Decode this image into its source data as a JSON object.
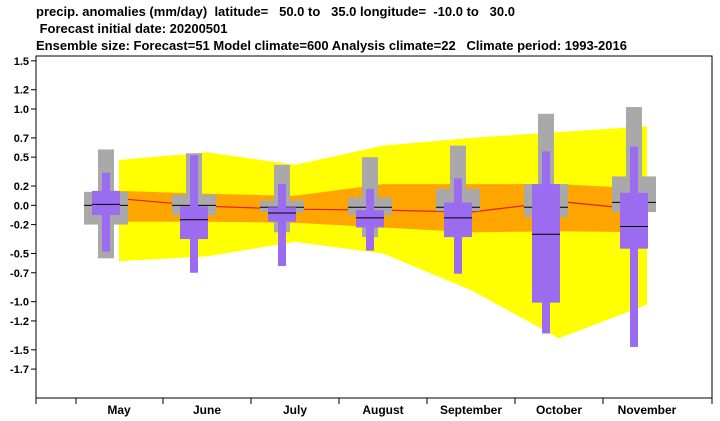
{
  "header": {
    "line1": "precip. anomalies (mm/day)  latitude=   50.0 to   35.0 longitude=  -10.0 to   30.0",
    "line2": " Forecast initial date: 20200501",
    "line3": "Ensemble size: Forecast=51 Model climate=600 Analysis climate=22   Climate period: 1993-2016"
  },
  "colors": {
    "outer_band": "#ffff00",
    "inner_band": "#ffa500",
    "median_line": "#e0201e",
    "climate_box": "#a9a9a9",
    "forecast_box": "#9b6cf0",
    "median_tick": "#000000"
  },
  "chart_data": {
    "type": "box",
    "categories": [
      "May",
      "June",
      "July",
      "August",
      "September",
      "October",
      "November"
    ],
    "y_ticks": [
      "1.5",
      "1.2",
      "1.0",
      "0.7",
      "0.5",
      "0.2",
      "0.0",
      "-0.2",
      "-0.5",
      "-0.7",
      "-1.0",
      "-1.2",
      "-1.5",
      "-1.7"
    ],
    "ylim": [
      -2.0,
      1.55
    ],
    "outer_band": {
      "upper": [
        0.47,
        0.55,
        0.42,
        0.62,
        0.7,
        0.76,
        0.82
      ],
      "lower": [
        -0.58,
        -0.53,
        -0.38,
        -0.5,
        -0.88,
        -1.38,
        -1.03
      ]
    },
    "inner_band": {
      "upper": [
        0.15,
        0.12,
        0.1,
        0.22,
        0.22,
        0.22,
        0.17
      ],
      "lower": [
        -0.17,
        -0.17,
        -0.18,
        -0.23,
        -0.28,
        -0.27,
        -0.28
      ]
    },
    "forecast_median": [
      0.07,
      -0.01,
      -0.04,
      -0.05,
      -0.07,
      0.04,
      -0.05
    ],
    "climate_boxes": [
      {
        "whisker_low": -0.55,
        "box_low": -0.2,
        "median": 0.0,
        "box_high": 0.14,
        "whisker_high": 0.58
      },
      {
        "whisker_low": -0.23,
        "box_low": -0.1,
        "median": 0.0,
        "box_high": 0.11,
        "whisker_high": 0.54
      },
      {
        "whisker_low": -0.28,
        "box_low": -0.07,
        "median": -0.02,
        "box_high": 0.05,
        "whisker_high": 0.42
      },
      {
        "whisker_low": -0.33,
        "box_low": -0.1,
        "median": -0.02,
        "box_high": 0.08,
        "whisker_high": 0.5
      },
      {
        "whisker_low": -0.23,
        "box_low": -0.06,
        "median": -0.02,
        "box_high": 0.17,
        "whisker_high": 0.62
      },
      {
        "whisker_low": -0.28,
        "box_low": -0.12,
        "median": -0.02,
        "box_high": 0.22,
        "whisker_high": 0.95
      },
      {
        "whisker_low": -0.28,
        "box_low": -0.07,
        "median": 0.03,
        "box_high": 0.3,
        "whisker_high": 1.02
      }
    ],
    "forecast_boxes": [
      {
        "whisker_low": -0.48,
        "box_low": -0.1,
        "median": 0.01,
        "box_high": 0.15,
        "whisker_high": 0.34
      },
      {
        "whisker_low": -0.7,
        "box_low": -0.35,
        "median": -0.15,
        "box_high": -0.01,
        "whisker_high": 0.52
      },
      {
        "whisker_low": -0.63,
        "box_low": -0.17,
        "median": -0.08,
        "box_high": -0.02,
        "whisker_high": 0.22
      },
      {
        "whisker_low": -0.47,
        "box_low": -0.23,
        "median": -0.13,
        "box_high": -0.05,
        "whisker_high": 0.17
      },
      {
        "whisker_low": -0.71,
        "box_low": -0.33,
        "median": -0.13,
        "box_high": 0.03,
        "whisker_high": 0.28
      },
      {
        "whisker_low": -1.33,
        "box_low": -1.01,
        "median": -0.3,
        "box_high": 0.22,
        "whisker_high": 0.56
      },
      {
        "whisker_low": -1.47,
        "box_low": -0.45,
        "median": -0.22,
        "box_high": 0.13,
        "whisker_high": 0.61
      }
    ],
    "grid": false,
    "legend": "none"
  }
}
